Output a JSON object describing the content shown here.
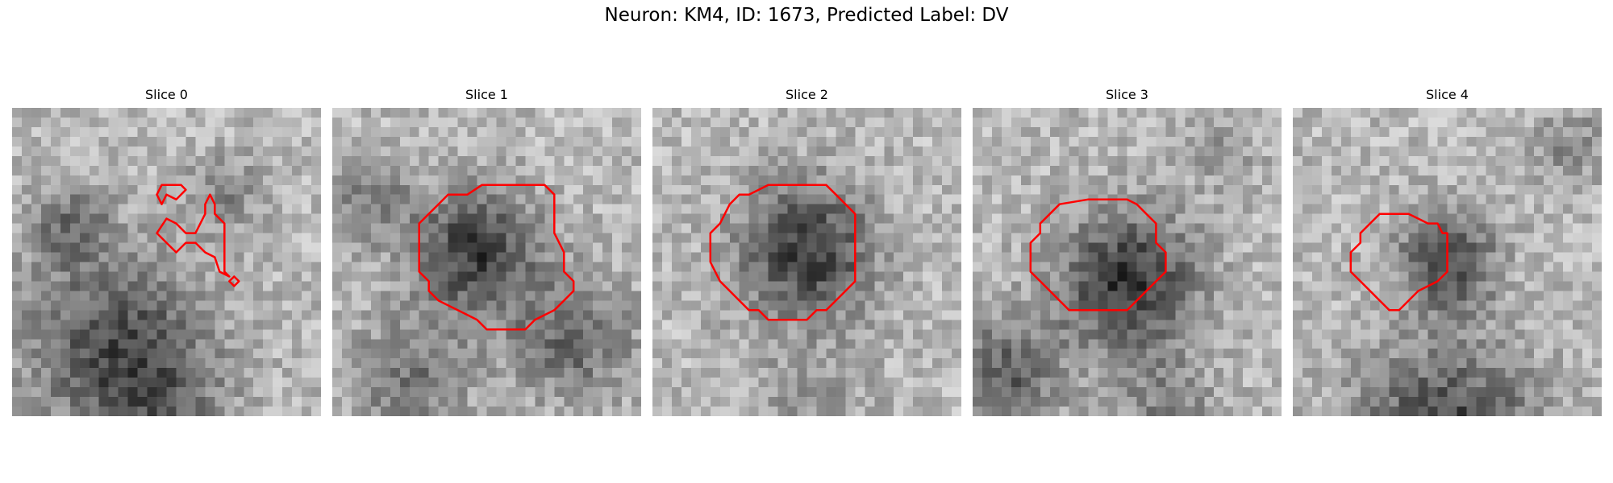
{
  "figure": {
    "title": "Neuron: KM4, ID: 1673, Predicted Label: DV"
  },
  "panels": [
    {
      "title": "Slice 0",
      "colormap": "gray",
      "contour_color": "#ff0000"
    },
    {
      "title": "Slice 1",
      "colormap": "gray",
      "contour_color": "#ff0000"
    },
    {
      "title": "Slice 2",
      "colormap": "gray",
      "contour_color": "#ff0000"
    },
    {
      "title": "Slice 3",
      "colormap": "gray",
      "contour_color": "#ff0000"
    },
    {
      "title": "Slice 4",
      "colormap": "gray",
      "contour_color": "#ff0000"
    }
  ]
}
